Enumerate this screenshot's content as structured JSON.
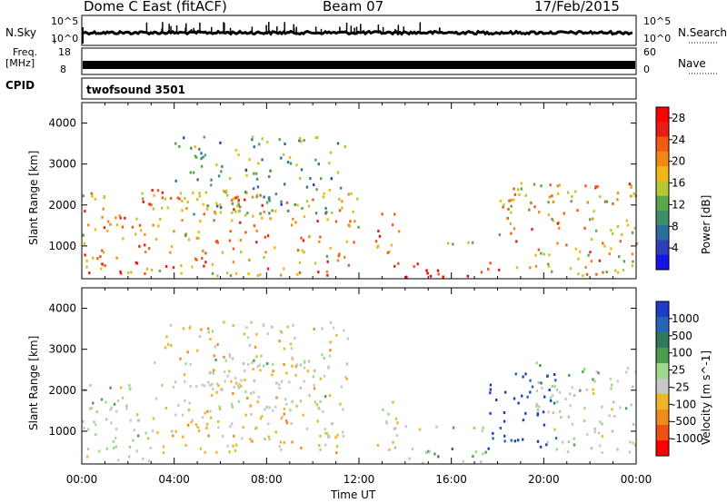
{
  "header": {
    "station": "Dome C East (fitACF)",
    "beam": "Beam 07",
    "date": "17/Feb/2015"
  },
  "status_panels": {
    "nsky_label": "N.Sky",
    "nsky_ticks": [
      "10^5",
      "10^0"
    ],
    "nsearch_label": "N.Search",
    "nsearch_ticks": [
      "10^5",
      "10^0"
    ],
    "freq_label": "Freq.",
    "freq_unit": "[MHz]",
    "freq_ticks": [
      "18",
      "8"
    ],
    "nave_label": "Nave",
    "nave_ticks": [
      "60",
      "0"
    ],
    "cpid_label": "CPID",
    "cpid_value": "twofsound 3501"
  },
  "chart_data": [
    {
      "type": "heatmap",
      "name": "power",
      "xlabel": "Time UT",
      "ylabel": "Slant Range [km]",
      "xlim_hours": [
        0,
        24
      ],
      "ylim_km": [
        200,
        4500
      ],
      "x_ticks": [
        "00:00",
        "04:00",
        "08:00",
        "12:00",
        "16:00",
        "20:00",
        "00:00"
      ],
      "y_ticks": [
        1000,
        2000,
        3000,
        4000
      ],
      "colorbar": {
        "label": "Power [dB]",
        "ticks": [
          4,
          8,
          12,
          16,
          20,
          24,
          28
        ],
        "range": [
          0,
          30
        ],
        "colors": [
          "#1414e6",
          "#2a3fb8",
          "#2a6e9e",
          "#3a8f6a",
          "#5aa64a",
          "#b8c832",
          "#f0b814",
          "#f08a14",
          "#f05a14",
          "#e61e14",
          "#ff0000"
        ]
      },
      "regions": [
        {
          "t": [
            0.0,
            12.0
          ],
          "r": [
            300,
            2400
          ],
          "level": 20
        },
        {
          "t": [
            4.0,
            11.5
          ],
          "r": [
            1800,
            3700
          ],
          "level": 12
        },
        {
          "t": [
            12.7,
            13.7
          ],
          "r": [
            500,
            1900
          ],
          "level": 22
        },
        {
          "t": [
            13.7,
            18.0
          ],
          "r": [
            1000,
            1150
          ],
          "level": 10
        },
        {
          "t": [
            14.0,
            18.3
          ],
          "r": [
            250,
            650
          ],
          "level": 28
        },
        {
          "t": [
            18.0,
            24.0
          ],
          "r": [
            300,
            2600
          ],
          "level": 18
        }
      ]
    },
    {
      "type": "heatmap",
      "name": "velocity",
      "xlabel": "Time UT",
      "ylabel": "Slant Range [km]",
      "xlim_hours": [
        0,
        24
      ],
      "ylim_km": [
        200,
        4500
      ],
      "x_ticks": [
        "00:00",
        "04:00",
        "08:00",
        "12:00",
        "16:00",
        "20:00",
        "00:00"
      ],
      "y_ticks": [
        1000,
        2000,
        3000,
        4000
      ],
      "colorbar": {
        "label": "Velocity [m s^-1]",
        "ticks": [
          "1000",
          "500",
          "100",
          "25",
          "-25",
          "-100",
          "-500",
          "-1000"
        ],
        "colors": [
          "#1e3cc8",
          "#2864b4",
          "#2e7a5a",
          "#4c9e4c",
          "#9fd88c",
          "#c8c8c8",
          "#f0b428",
          "#f08c1e",
          "#f05014",
          "#ff0000"
        ]
      },
      "regions": [
        {
          "t": [
            0.0,
            3.0
          ],
          "r": [
            300,
            2200
          ],
          "level": 25
        },
        {
          "t": [
            3.0,
            11.5
          ],
          "r": [
            500,
            3700
          ],
          "level": -200
        },
        {
          "t": [
            5.5,
            11.0
          ],
          "r": [
            1500,
            2900
          ],
          "level": 0
        },
        {
          "t": [
            12.7,
            13.7
          ],
          "r": [
            500,
            1900
          ],
          "level": -150
        },
        {
          "t": [
            13.7,
            18.0
          ],
          "r": [
            950,
            1150
          ],
          "level": 0
        },
        {
          "t": [
            14.0,
            18.3
          ],
          "r": [
            250,
            650
          ],
          "level": 200
        },
        {
          "t": [
            17.5,
            20.5
          ],
          "r": [
            600,
            2500
          ],
          "level": 900
        },
        {
          "t": [
            19.5,
            24.0
          ],
          "r": [
            500,
            2700
          ],
          "level": 0
        }
      ]
    }
  ]
}
